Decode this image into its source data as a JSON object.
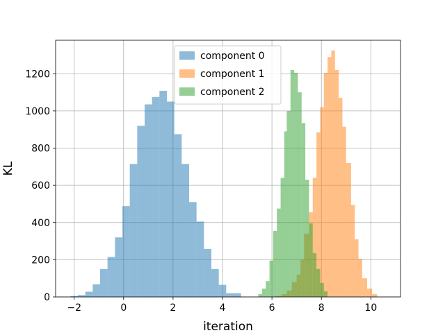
{
  "chart_data": {
    "type": "bar",
    "title": "",
    "xlabel": "iteration",
    "ylabel": "KL",
    "xlim": [
      -2.75,
      11.2
    ],
    "ylim": [
      0,
      1380
    ],
    "x_ticks": [
      -2,
      0,
      2,
      4,
      6,
      8,
      10
    ],
    "x_tick_labels": [
      "−2",
      "0",
      "2",
      "4",
      "6",
      "8",
      "10"
    ],
    "y_ticks": [
      0,
      200,
      400,
      600,
      800,
      1000,
      1200
    ],
    "y_tick_labels": [
      "0",
      "200",
      "400",
      "600",
      "800",
      "1000",
      "1200"
    ],
    "grid": true,
    "legend_position": "top-center",
    "series": [
      {
        "name": "component 0",
        "color": "#1f77b4",
        "alpha": 0.5,
        "bin_edges": [
          -2.15,
          -1.85,
          -1.55,
          -1.25,
          -0.95,
          -0.65,
          -0.35,
          -0.05,
          0.25,
          0.55,
          0.85,
          1.15,
          1.45,
          1.75,
          2.05,
          2.35,
          2.65,
          2.95,
          3.25,
          3.55,
          3.85,
          4.15,
          4.45,
          4.75
        ],
        "counts": [
          5,
          10,
          28,
          68,
          150,
          215,
          320,
          488,
          715,
          920,
          1035,
          1075,
          1108,
          1050,
          875,
          715,
          510,
          405,
          258,
          150,
          65,
          20,
          20
        ]
      },
      {
        "name": "component 1",
        "color": "#ff7f0e",
        "alpha": 0.5,
        "bin_edges": [
          6.15,
          6.4,
          6.6,
          6.8,
          7.0,
          7.15,
          7.3,
          7.5,
          7.65,
          7.8,
          7.95,
          8.1,
          8.25,
          8.4,
          8.55,
          8.7,
          8.85,
          9.0,
          9.2,
          9.35,
          9.5,
          9.65,
          9.85,
          10.05,
          10.25
        ],
        "counts": [
          5,
          15,
          35,
          80,
          120,
          200,
          340,
          455,
          640,
          885,
          1020,
          1205,
          1290,
          1325,
          1220,
          1070,
          915,
          720,
          495,
          310,
          205,
          100,
          45,
          15
        ]
      },
      {
        "name": "component 2",
        "color": "#2ca02c",
        "alpha": 0.5,
        "bin_edges": [
          5.45,
          5.6,
          5.75,
          5.9,
          6.05,
          6.2,
          6.35,
          6.5,
          6.6,
          6.75,
          6.9,
          7.05,
          7.2,
          7.35,
          7.5,
          7.65,
          7.8,
          7.95,
          8.1,
          8.25
        ],
        "counts": [
          15,
          45,
          85,
          195,
          355,
          475,
          640,
          890,
          1000,
          1220,
          1205,
          1100,
          935,
          630,
          395,
          235,
          150,
          75,
          30
        ]
      }
    ]
  }
}
